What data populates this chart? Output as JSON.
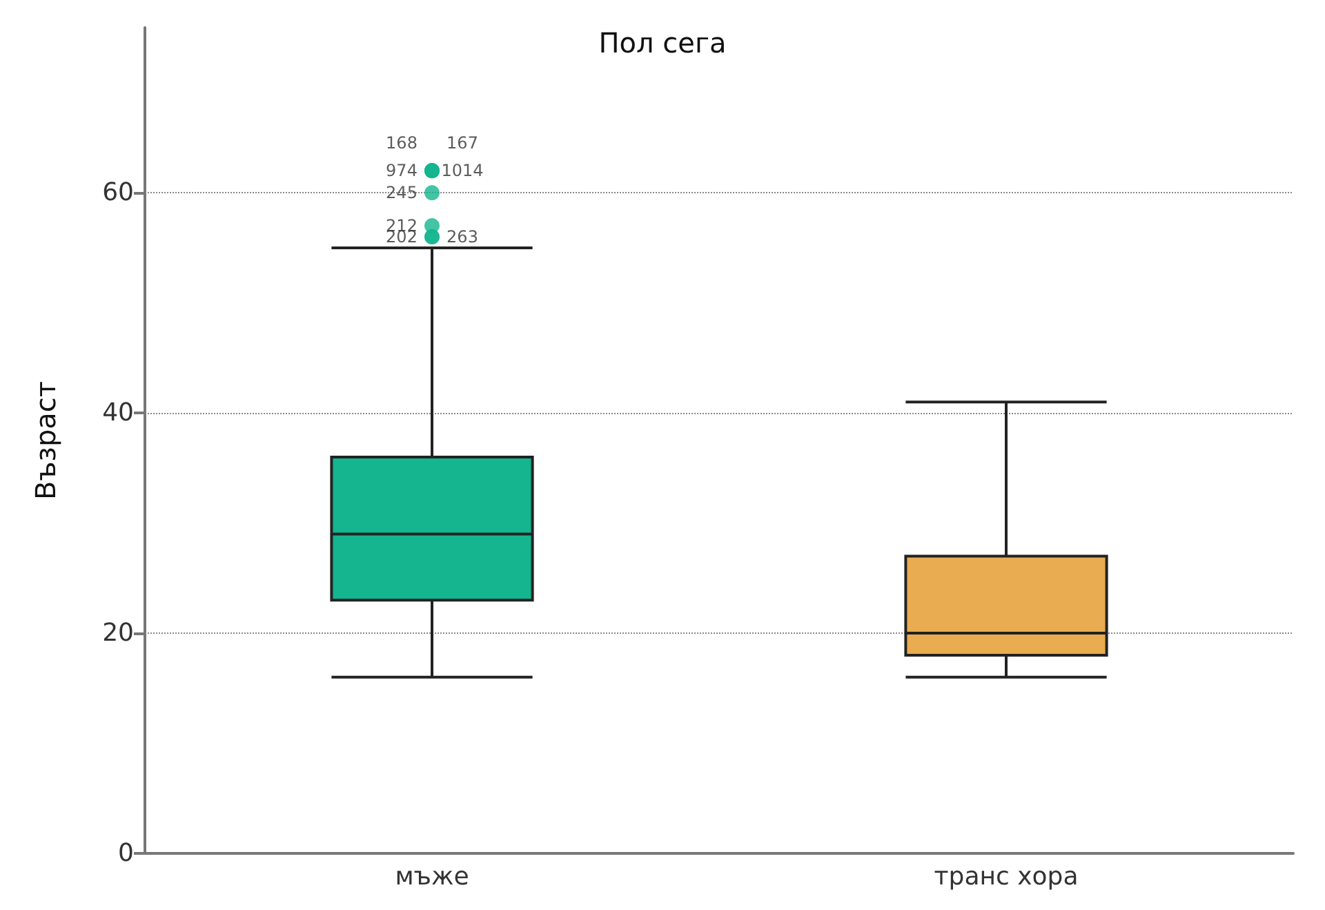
{
  "chart_data": {
    "type": "box",
    "title": "Пол сега",
    "ylabel": "Възраст",
    "categories": [
      "мъже",
      "транс хора"
    ],
    "colors": [
      "#14b58f",
      "#e9ac50"
    ],
    "boxes": [
      {
        "low": 16,
        "q1": 23,
        "median": 29,
        "q3": 36,
        "high": 55,
        "outliers": [
          56,
          56,
          57,
          60,
          62,
          62,
          62,
          62
        ]
      },
      {
        "low": 16,
        "q1": 18,
        "median": 20,
        "q3": 27,
        "high": 41
      }
    ],
    "annotations": [
      "202",
      "263",
      "212",
      "245",
      "974",
      "1014",
      "168",
      "167"
    ],
    "ylim": [
      0,
      75
    ],
    "yticks": [
      0,
      20,
      40,
      60
    ],
    "grid": "y"
  }
}
